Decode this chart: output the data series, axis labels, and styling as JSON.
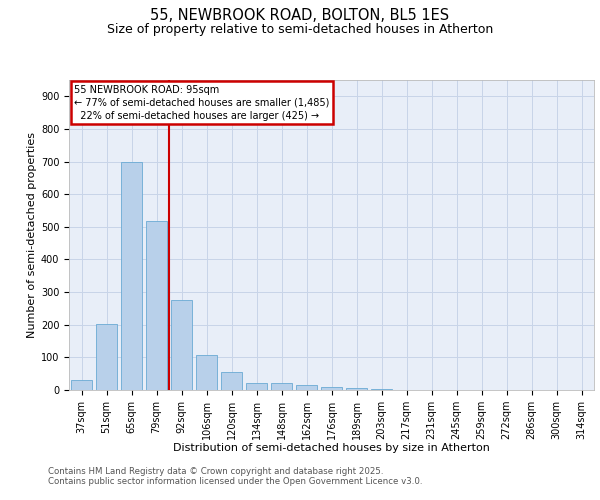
{
  "title1": "55, NEWBROOK ROAD, BOLTON, BL5 1ES",
  "title2": "Size of property relative to semi-detached houses in Atherton",
  "xlabel": "Distribution of semi-detached houses by size in Atherton",
  "ylabel": "Number of semi-detached properties",
  "categories": [
    "37sqm",
    "51sqm",
    "65sqm",
    "79sqm",
    "92sqm",
    "106sqm",
    "120sqm",
    "134sqm",
    "148sqm",
    "162sqm",
    "176sqm",
    "189sqm",
    "203sqm",
    "217sqm",
    "231sqm",
    "245sqm",
    "259sqm",
    "272sqm",
    "286sqm",
    "300sqm",
    "314sqm"
  ],
  "values": [
    30,
    202,
    700,
    517,
    275,
    108,
    54,
    22,
    20,
    14,
    10,
    5,
    2,
    1,
    1,
    0,
    0,
    0,
    0,
    0,
    0
  ],
  "bar_color": "#b8d0ea",
  "bar_edge_color": "#6aaad4",
  "grid_color": "#c8d4e8",
  "background_color": "#e8eef8",
  "vline_color": "#cc0000",
  "vline_x_index": 4,
  "annotation_text": "55 NEWBROOK ROAD: 95sqm\n← 77% of semi-detached houses are smaller (1,485)\n  22% of semi-detached houses are larger (425) →",
  "annotation_box_color": "#cc0000",
  "ylim": [
    0,
    950
  ],
  "yticks": [
    0,
    100,
    200,
    300,
    400,
    500,
    600,
    700,
    800,
    900
  ],
  "footer_line1": "Contains HM Land Registry data © Crown copyright and database right 2025.",
  "footer_line2": "Contains public sector information licensed under the Open Government Licence v3.0.",
  "title1_fontsize": 10.5,
  "title2_fontsize": 9,
  "axis_label_fontsize": 8,
  "tick_fontsize": 7,
  "footer_fontsize": 6.2,
  "annot_fontsize": 7
}
